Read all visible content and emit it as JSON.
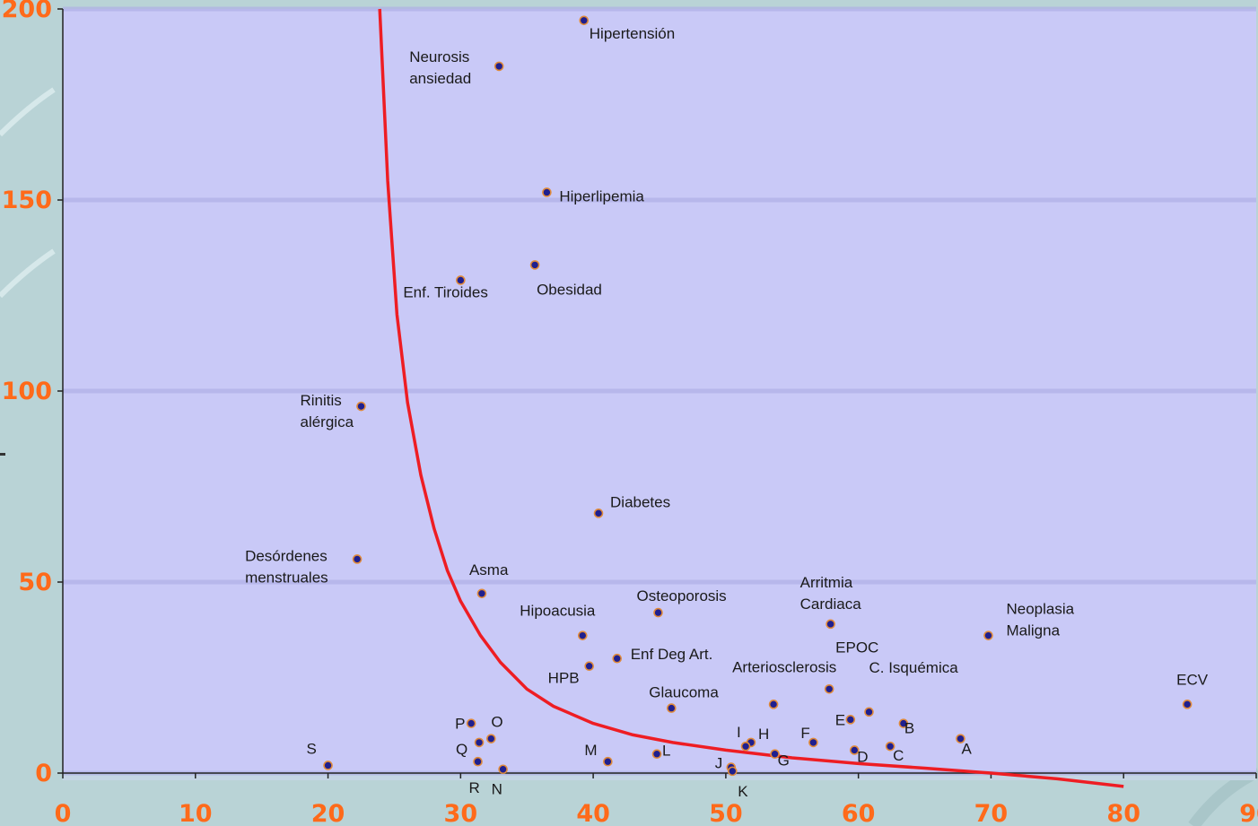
{
  "chart_data": {
    "type": "scatter",
    "title": "",
    "xlabel": "",
    "ylabel": "",
    "xlim": [
      0,
      90
    ],
    "ylim": [
      0,
      200
    ],
    "x_ticks": [
      "0",
      "10",
      "20",
      "30",
      "40",
      "50",
      "60",
      "70",
      "80",
      "90"
    ],
    "y_ticks": [
      "0",
      "50",
      "100",
      "150",
      "200"
    ],
    "colors": {
      "plot_bg": "#c9c9f7",
      "point_fill": "#1f1f8f",
      "point_ring": "#e08a3a",
      "curve": "#ee1d23",
      "tick_label": "#ff6a1a"
    },
    "points": [
      {
        "x": 39.3,
        "y": 197,
        "label": [
          "Hipertensión"
        ]
      },
      {
        "x": 32.9,
        "y": 185,
        "label": [
          "Neurosis",
          "ansiedad"
        ]
      },
      {
        "x": 36.5,
        "y": 152,
        "label": [
          "Hiperlipemia"
        ]
      },
      {
        "x": 30.0,
        "y": 129,
        "label": [
          "Enf. Tiroides"
        ]
      },
      {
        "x": 35.6,
        "y": 133,
        "label": [
          "Obesidad"
        ]
      },
      {
        "x": 22.5,
        "y": 96,
        "label": [
          "Rinitis",
          "alérgica"
        ]
      },
      {
        "x": 40.4,
        "y": 68,
        "label": [
          "Diabetes"
        ]
      },
      {
        "x": 22.2,
        "y": 56,
        "label": [
          "Desórdenes",
          "menstruales"
        ]
      },
      {
        "x": 31.6,
        "y": 47,
        "label": [
          "Asma"
        ]
      },
      {
        "x": 44.9,
        "y": 42,
        "label": [
          "Osteoporosis"
        ]
      },
      {
        "x": 57.9,
        "y": 39,
        "label": [
          "Arritmia",
          "Cardiaca"
        ]
      },
      {
        "x": 69.8,
        "y": 36,
        "label": [
          "Neoplasia",
          "Maligna"
        ]
      },
      {
        "x": 39.2,
        "y": 36,
        "label": [
          "Hipoacusia"
        ]
      },
      {
        "x": 41.8,
        "y": 30,
        "label": [
          "Enf Deg Art."
        ]
      },
      {
        "x": 39.7,
        "y": 28,
        "label": [
          "HPB"
        ]
      },
      {
        "x": 57.8,
        "y": 22,
        "label": [
          "EPOC"
        ]
      },
      {
        "x": 53.6,
        "y": 18,
        "label": [
          "Arteriosclerosis"
        ]
      },
      {
        "x": 84.8,
        "y": 18,
        "label": [
          "ECV"
        ]
      },
      {
        "x": 45.9,
        "y": 17,
        "label": [
          "Glaucoma"
        ]
      },
      {
        "x": 60.8,
        "y": 16,
        "label": [
          "C. Isquémica"
        ]
      },
      {
        "x": 30.8,
        "y": 13,
        "label": [
          "P"
        ]
      },
      {
        "x": 32.3,
        "y": 9,
        "label": [
          "O"
        ]
      },
      {
        "x": 31.4,
        "y": 8,
        "label": [
          "Q"
        ]
      },
      {
        "x": 59.4,
        "y": 14,
        "label": [
          "E"
        ]
      },
      {
        "x": 63.4,
        "y": 13,
        "label": [
          "B"
        ]
      },
      {
        "x": 67.7,
        "y": 9,
        "label": [
          "A"
        ]
      },
      {
        "x": 56.6,
        "y": 8,
        "label": [
          "F"
        ]
      },
      {
        "x": 51.9,
        "y": 8,
        "label": [
          "H"
        ]
      },
      {
        "x": 51.5,
        "y": 7,
        "label": [
          "I"
        ]
      },
      {
        "x": 53.7,
        "y": 5,
        "label": [
          "G"
        ]
      },
      {
        "x": 59.7,
        "y": 6,
        "label": [
          "D"
        ]
      },
      {
        "x": 62.4,
        "y": 7,
        "label": [
          "C"
        ]
      },
      {
        "x": 44.8,
        "y": 5,
        "label": [
          "L"
        ]
      },
      {
        "x": 41.1,
        "y": 3,
        "label": [
          "M"
        ]
      },
      {
        "x": 31.3,
        "y": 3,
        "label": [
          "R"
        ]
      },
      {
        "x": 33.2,
        "y": 1,
        "label": [
          "N"
        ]
      },
      {
        "x": 20.0,
        "y": 2,
        "label": [
          "S"
        ]
      },
      {
        "x": 50.4,
        "y": 1.5,
        "label": [
          "J"
        ]
      },
      {
        "x": 50.5,
        "y": 0.5,
        "label": [
          "K"
        ]
      }
    ],
    "curve": {
      "name": "",
      "points": [
        [
          23.9,
          200
        ],
        [
          24.5,
          155
        ],
        [
          25.2,
          120
        ],
        [
          26.0,
          97
        ],
        [
          27.0,
          78
        ],
        [
          28.0,
          64
        ],
        [
          29.0,
          53
        ],
        [
          30.0,
          45
        ],
        [
          31.5,
          36
        ],
        [
          33.0,
          29
        ],
        [
          35.0,
          22
        ],
        [
          37.0,
          17.5
        ],
        [
          40.0,
          13
        ],
        [
          43.0,
          10
        ],
        [
          46.0,
          8
        ],
        [
          50.0,
          6
        ],
        [
          55.0,
          4
        ],
        [
          60.0,
          2.5
        ],
        [
          65.0,
          1.3
        ],
        [
          70.0,
          0
        ],
        [
          75.0,
          -1.5
        ],
        [
          80.0,
          -3.5
        ]
      ]
    }
  }
}
